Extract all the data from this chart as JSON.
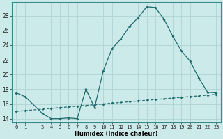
{
  "xlabel": "Humidex (Indice chaleur)",
  "background_color": "#cdeaea",
  "line_color": "#1e6b6b",
  "grid_color": "#afd4d4",
  "line1_x": [
    0,
    1,
    3,
    4,
    5,
    6,
    7,
    8,
    9,
    10,
    11,
    12,
    13,
    14,
    15,
    16,
    17,
    18,
    19,
    20,
    21,
    22,
    23
  ],
  "line1_y": [
    17.5,
    17.0,
    14.7,
    14.0,
    14.0,
    14.1,
    14.0,
    18.0,
    15.5,
    20.5,
    23.5,
    24.8,
    26.5,
    27.7,
    29.2,
    29.1,
    27.5,
    25.2,
    23.2,
    21.8,
    19.5,
    17.6,
    17.5
  ],
  "line2_x": [
    0,
    1,
    3,
    4,
    5,
    6,
    7,
    8,
    9,
    10,
    11,
    12,
    13,
    14,
    15,
    16,
    17,
    18,
    19,
    20,
    21,
    22,
    23
  ],
  "line2_y": [
    15.0,
    15.1,
    15.3,
    15.4,
    15.5,
    15.6,
    15.7,
    15.8,
    15.9,
    16.0,
    16.1,
    16.2,
    16.3,
    16.4,
    16.5,
    16.6,
    16.7,
    16.8,
    16.9,
    17.0,
    17.1,
    17.2,
    17.3
  ],
  "xlim": [
    -0.5,
    23.5
  ],
  "ylim": [
    13.5,
    29.8
  ],
  "yticks": [
    14,
    16,
    18,
    20,
    22,
    24,
    26,
    28
  ],
  "x_ticks": [
    0,
    1,
    3,
    4,
    5,
    6,
    7,
    8,
    9,
    10,
    11,
    12,
    13,
    14,
    15,
    16,
    17,
    18,
    19,
    20,
    21,
    22,
    23
  ],
  "x_tick_labels": [
    "0",
    "1",
    "3",
    "4",
    "5",
    "6",
    "7",
    "8",
    "9",
    "10",
    "11",
    "12",
    "13",
    "14",
    "15",
    "16",
    "17",
    "18",
    "19",
    "20",
    "21",
    "22",
    "23"
  ],
  "xlabel_fontsize": 6.0,
  "tick_fontsize": 5.0,
  "ytick_fontsize": 5.5,
  "linewidth": 0.9,
  "markersize": 2.0
}
